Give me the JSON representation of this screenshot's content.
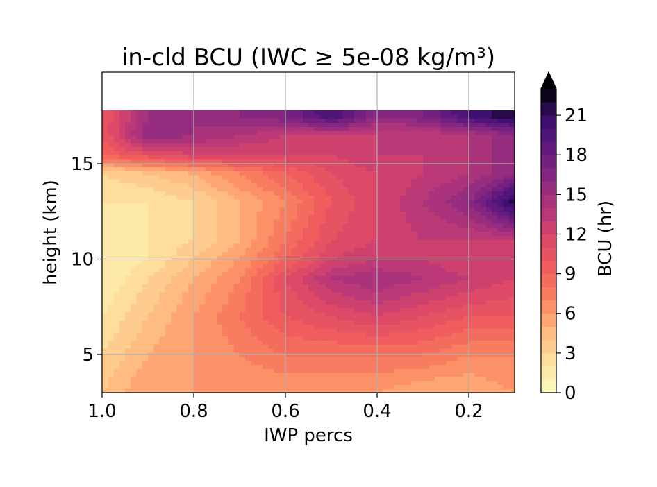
{
  "chart_data": {
    "type": "heatmap",
    "title": "in-cld BCU (IWC ≥ 5e-08 kg/m³)",
    "xlabel": "IWP percs",
    "ylabel": "height (km)",
    "colorbar_label": "BCU (hr)",
    "colormap": "magma_r",
    "x_range": [
      1.0,
      0.1
    ],
    "y_range": [
      3.0,
      19.8
    ],
    "x_ticks": [
      1.0,
      0.8,
      0.6,
      0.4,
      0.2
    ],
    "x_tick_labels": [
      "1.0",
      "0.8",
      "0.6",
      "0.4",
      "0.2"
    ],
    "y_ticks": [
      5,
      10,
      15
    ],
    "y_tick_labels": [
      "5",
      "10",
      "15"
    ],
    "colorbar_range": [
      0,
      23
    ],
    "colorbar_levels_step": 1,
    "colorbar_extend": "max",
    "colorbar_ticks": [
      0,
      3,
      6,
      9,
      12,
      15,
      18,
      21
    ],
    "colorbar_tick_labels": [
      "0",
      "3",
      "6",
      "9",
      "12",
      "15",
      "18",
      "21"
    ],
    "grid": true,
    "data_top_height_km": 17.8,
    "bcu_estimates": {
      "x": [
        1.0,
        0.9,
        0.8,
        0.7,
        0.6,
        0.5,
        0.4,
        0.3,
        0.2,
        0.1
      ],
      "y": [
        3,
        5,
        7,
        9,
        10,
        11,
        13,
        14.5,
        15.5,
        16.5,
        17.5
      ],
      "values": [
        [
          4,
          6,
          6,
          6,
          6,
          6,
          6,
          5,
          5,
          6
        ],
        [
          3,
          5,
          6,
          7,
          8,
          8,
          8,
          8,
          7,
          7
        ],
        [
          2,
          4,
          6,
          8,
          10,
          11,
          12,
          11,
          10,
          10
        ],
        [
          1,
          3,
          5,
          7,
          11,
          14,
          15,
          14,
          13,
          12
        ],
        [
          1,
          2,
          4,
          6,
          9,
          12,
          13,
          13,
          12,
          12
        ],
        [
          1,
          2,
          3,
          5,
          8,
          11,
          12,
          13,
          13,
          13
        ],
        [
          2,
          2,
          3,
          5,
          7,
          10,
          12,
          14,
          16,
          22
        ],
        [
          3,
          4,
          5,
          7,
          9,
          11,
          12,
          13,
          14,
          16
        ],
        [
          9,
          11,
          12,
          12,
          12,
          12,
          13,
          13,
          14,
          16
        ],
        [
          10,
          16,
          15,
          14,
          13,
          13,
          13,
          13,
          14,
          16
        ],
        [
          10,
          15,
          15,
          16,
          17,
          20,
          16,
          17,
          20,
          22
        ]
      ]
    }
  }
}
